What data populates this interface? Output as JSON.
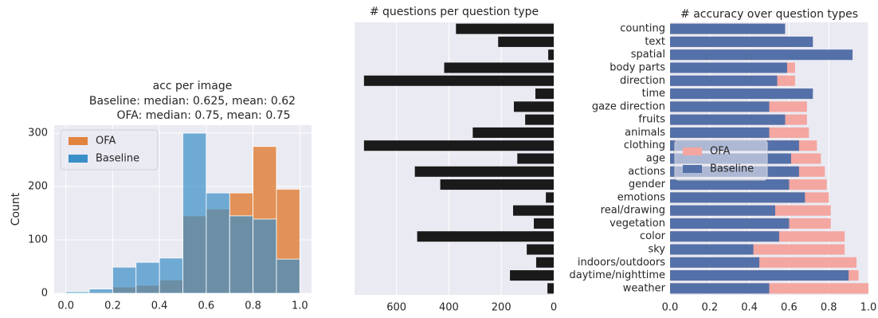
{
  "chart_data": [
    {
      "type": "histogram",
      "title": "acc per image",
      "subtitle": [
        "Baseline: median: 0.625, mean: 0.62",
        "OFA: median: 0.75,  mean: 0.75"
      ],
      "ylabel": "Count",
      "bins": [
        0,
        0.1,
        0.2,
        0.3,
        0.4,
        0.5,
        0.6,
        0.7,
        0.8,
        0.9,
        1.0
      ],
      "series": [
        {
          "name": "OFA",
          "color": "#e1823d",
          "values": [
            1,
            2,
            12,
            15,
            25,
            145,
            158,
            188,
            275,
            195
          ]
        },
        {
          "name": "Baseline",
          "color": "#3a8fc8",
          "values": [
            3,
            8,
            49,
            58,
            66,
            300,
            188,
            145,
            139,
            64
          ]
        }
      ],
      "xlim": [
        -0.05,
        1.05
      ],
      "xticks": [
        {
          "value": 0,
          "label": "0.0"
        },
        0.2,
        0.4,
        0.6,
        0.8,
        {
          "value": 1,
          "label": "1.0"
        }
      ],
      "ylim": [
        0,
        315
      ],
      "yticks": [
        0,
        100,
        200,
        300
      ],
      "grid": true,
      "legend": "upper left"
    },
    {
      "type": "hbar",
      "title": "# questions per question type",
      "values": [
        373,
        212,
        21,
        418,
        724,
        70,
        152,
        109,
        309,
        724,
        139,
        530,
        433,
        30,
        155,
        76,
        521,
        103,
        67,
        167,
        24
      ],
      "color": "#1a1a1a",
      "xlim": [
        760,
        0
      ],
      "xticks": [
        600,
        400,
        200,
        0
      ],
      "grid": true
    },
    {
      "type": "hbar-overlap",
      "title": "# accuracy over question types",
      "categories": [
        "counting",
        "text",
        "spatial",
        "body parts",
        "direction",
        "time",
        "gaze direction",
        "fruits",
        "animals",
        "clothing",
        "age",
        "actions",
        "gender",
        "emotions",
        "real/drawing",
        "vegetation",
        "color",
        "sky",
        "indoors/outdoors",
        "daytime/nighttime",
        "weather"
      ],
      "series": [
        {
          "name": "OFA",
          "color": "#f4a6a0",
          "values": [
            0.57,
            0.59,
            0.61,
            0.63,
            0.63,
            0.7,
            0.69,
            0.69,
            0.7,
            0.74,
            0.76,
            0.78,
            0.79,
            0.8,
            0.81,
            0.81,
            0.88,
            0.88,
            0.94,
            0.95,
            1.0
          ]
        },
        {
          "name": "Baseline",
          "color": "#5470a8",
          "values": [
            0.58,
            0.72,
            0.92,
            0.59,
            0.54,
            0.72,
            0.5,
            0.58,
            0.5,
            0.65,
            0.61,
            0.65,
            0.6,
            0.68,
            0.53,
            0.6,
            0.55,
            0.42,
            0.45,
            0.9,
            0.5
          ]
        }
      ],
      "xlim": [
        0,
        1
      ],
      "xticks": [
        {
          "value": 0,
          "label": "0.0"
        },
        0.2,
        0.4,
        0.6,
        0.8,
        {
          "value": 1,
          "label": "1.0"
        }
      ],
      "grid": true,
      "legend": "center left"
    }
  ]
}
